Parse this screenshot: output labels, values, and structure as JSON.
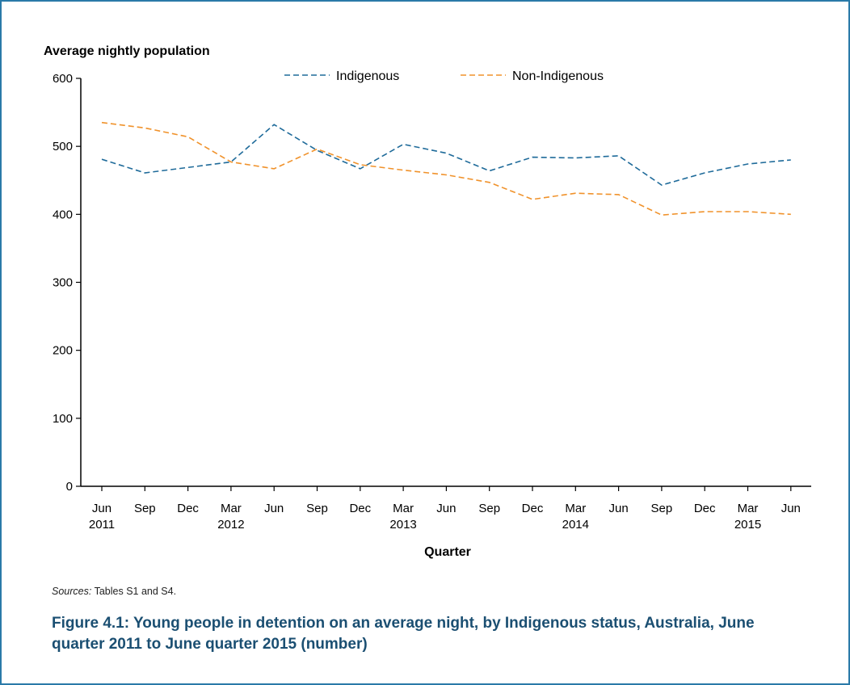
{
  "chart_data": {
    "type": "line",
    "title": "",
    "ylabel": "Average nightly population",
    "xlabel": "Quarter",
    "ylim": [
      0,
      600
    ],
    "yticks": [
      0,
      100,
      200,
      300,
      400,
      500,
      600
    ],
    "categories": [
      "Jun 2011",
      "Sep 2011",
      "Dec 2011",
      "Mar 2012",
      "Jun 2012",
      "Sep 2012",
      "Dec 2012",
      "Mar 2013",
      "Jun 2013",
      "Sep 2013",
      "Dec 2013",
      "Mar 2014",
      "Jun 2014",
      "Sep 2014",
      "Dec 2014",
      "Mar 2015",
      "Jun 2015"
    ],
    "tick_labels": [
      {
        "line1": "Jun",
        "line2": "2011"
      },
      {
        "line1": "Sep",
        "line2": ""
      },
      {
        "line1": "Dec",
        "line2": ""
      },
      {
        "line1": "Mar",
        "line2": "2012"
      },
      {
        "line1": "Jun",
        "line2": ""
      },
      {
        "line1": "Sep",
        "line2": ""
      },
      {
        "line1": "Dec",
        "line2": ""
      },
      {
        "line1": "Mar",
        "line2": "2013"
      },
      {
        "line1": "Jun",
        "line2": ""
      },
      {
        "line1": "Sep",
        "line2": ""
      },
      {
        "line1": "Dec",
        "line2": ""
      },
      {
        "line1": "Mar",
        "line2": "2014"
      },
      {
        "line1": "Jun",
        "line2": ""
      },
      {
        "line1": "Sep",
        "line2": ""
      },
      {
        "line1": "Dec",
        "line2": ""
      },
      {
        "line1": "Mar",
        "line2": "2015"
      },
      {
        "line1": "Jun",
        "line2": ""
      }
    ],
    "series": [
      {
        "name": "Indigenous",
        "color": "#1f6b9a",
        "values": [
          481,
          461,
          469,
          477,
          532,
          494,
          467,
          503,
          490,
          464,
          484,
          483,
          486,
          443,
          461,
          474,
          480
        ]
      },
      {
        "name": "Non-Indigenous",
        "color": "#f0922b",
        "values": [
          535,
          527,
          514,
          477,
          467,
          496,
          473,
          465,
          458,
          447,
          422,
          431,
          429,
          399,
          404,
          404,
          400
        ]
      }
    ],
    "legend_position": "top",
    "grid": false
  },
  "sources": {
    "label": "Sources:",
    "text": " Tables S1 and S4."
  },
  "caption": "Figure 4.1: Young people in detention on an average night, by Indigenous status, Australia, June quarter 2011 to June quarter 2015 (number)"
}
